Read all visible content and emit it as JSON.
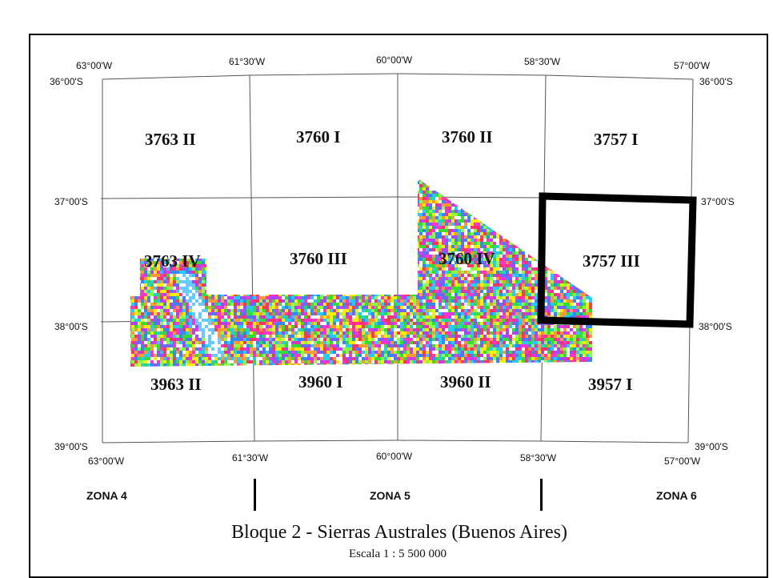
{
  "map": {
    "title": "Bloque 2 - Sierras Australes (Buenos Aires)",
    "scale": "Escala 1 : 5 500 000",
    "top_labels": [
      "63°00'W",
      "61°30'W",
      "60°00'W",
      "58°30'W",
      "57°00'W"
    ],
    "bottom_labels": [
      "63°00'W",
      "61°30'W",
      "60°00'W",
      "58°30'W",
      "57°00'W"
    ],
    "left_labels": [
      "36°00'S",
      "37°00'S",
      "38°00'S",
      "39°00'S"
    ],
    "right_labels": [
      "36°00'S",
      "37°00'S",
      "38°00'S",
      "39°00'S"
    ],
    "sheets": [
      "3763 II",
      "3760 I",
      "3760 II",
      "3757 I",
      "3763 IV",
      "3760 III",
      "3760 IV",
      "3757 III",
      "3963 II",
      "3960 I",
      "3960 II",
      "3957 I"
    ],
    "zones": [
      "ZONA 4",
      "ZONA 5",
      "ZONA 6"
    ],
    "highlighted_sheet": "3757 III",
    "colors": {
      "frame": "#000000",
      "grid": "#555555",
      "data_palette": [
        "#ff33cc",
        "#ffee00",
        "#33dd33",
        "#22ccff",
        "#ff9933",
        "#aa44ff",
        "#ff3366",
        "#88ff44",
        "#ffffff",
        "#3388ff"
      ]
    }
  }
}
